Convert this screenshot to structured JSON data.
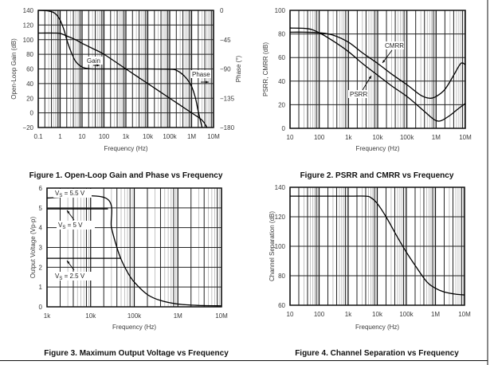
{
  "page": {
    "bottom_marks": [
      "",
      "",
      ""
    ]
  },
  "chart_data": [
    {
      "id": "fig1",
      "type": "line",
      "title": "Figure 1. Open-Loop Gain and Phase vs Frequency",
      "xlabel": "Frequency (Hz)",
      "ylabel": "Open-Loop Gain (dB)",
      "y2label": "Phase (°)",
      "xscale": "log",
      "xlim": [
        0.1,
        10000000
      ],
      "ylim": [
        -20,
        140
      ],
      "y2lim": [
        -180,
        0
      ],
      "xticks": [
        0.1,
        1,
        10,
        100,
        1000,
        10000,
        100000,
        1000000,
        10000000
      ],
      "xticklabels": [
        "0.1",
        "1",
        "10",
        "100",
        "1k",
        "10k",
        "100k",
        "1M",
        "10M"
      ],
      "yticks": [
        -20,
        0,
        20,
        40,
        60,
        80,
        100,
        120,
        140
      ],
      "yticklabels": [
        "−20",
        "0",
        "20",
        "40",
        "60",
        "80",
        "100",
        "120",
        "140"
      ],
      "y2ticks": [
        0,
        -45,
        -90,
        -135,
        -180
      ],
      "y2ticklabels": [
        "0",
        "−45",
        "−90",
        "−135",
        "−180"
      ],
      "grid": true,
      "series": [
        {
          "name": "Gain",
          "axis": "left",
          "x": [
            0.1,
            0.5,
            1,
            2,
            5,
            10,
            30,
            100,
            1000,
            10000,
            100000,
            1000000,
            3000000,
            5000000
          ],
          "y": [
            109,
            109,
            108.5,
            105,
            100,
            95,
            88,
            80,
            60,
            40,
            20,
            0,
            -10,
            -20
          ]
        },
        {
          "name": "Phase",
          "axis": "right",
          "x": [
            0.1,
            0.3,
            0.6,
            1,
            1.5,
            2,
            3,
            5,
            10,
            20,
            40,
            100,
            1000,
            10000,
            100000,
            200000,
            500000,
            1000000,
            1500000,
            2000000,
            3000000
          ],
          "y": [
            0,
            -1,
            -5,
            -15,
            -30,
            -45,
            -62,
            -78,
            -87,
            -89.5,
            -90,
            -90,
            -90,
            -90,
            -90.5,
            -92,
            -102,
            -117,
            -135,
            -155,
            -180
          ]
        }
      ],
      "annotations": [
        {
          "text": "Gain",
          "target": "Gain"
        },
        {
          "text": "Phase",
          "target": "Phase"
        }
      ]
    },
    {
      "id": "fig2",
      "type": "line",
      "title": "Figure 2. PSRR and CMRR vs Frequency",
      "xlabel": "Frequency (Hz)",
      "ylabel": "PSRR, CMRR (dB)",
      "xscale": "log",
      "xlim": [
        10,
        10000000
      ],
      "ylim": [
        0,
        100
      ],
      "xticks": [
        10,
        100,
        1000,
        10000,
        100000,
        1000000,
        10000000
      ],
      "xticklabels": [
        "10",
        "100",
        "1k",
        "10k",
        "100k",
        "1M",
        "10M"
      ],
      "yticks": [
        0,
        20,
        40,
        60,
        80,
        100
      ],
      "yticklabels": [
        "0",
        "20",
        "40",
        "60",
        "80",
        "100"
      ],
      "grid": true,
      "series": [
        {
          "name": "CMRR",
          "x": [
            10,
            30,
            100,
            300,
            1000,
            3000,
            10000,
            30000,
            100000,
            300000,
            600000,
            1000000,
            2000000,
            4000000,
            7000000,
            10000000
          ],
          "y": [
            81.5,
            81.5,
            81,
            79,
            73,
            64,
            55,
            46,
            37,
            28,
            25.5,
            27,
            33,
            45,
            55,
            54
          ]
        },
        {
          "name": "PSRR",
          "x": [
            10,
            40,
            100,
            300,
            1000,
            3000,
            10000,
            30000,
            100000,
            300000,
            700000,
            1000000,
            1500000,
            3000000,
            6000000,
            10000000
          ],
          "y": [
            85,
            84.5,
            81,
            74,
            65,
            55,
            45,
            36,
            27,
            17,
            9,
            6.5,
            6.5,
            11,
            17,
            21
          ]
        }
      ],
      "annotations": [
        {
          "text": "CMRR",
          "target": "CMRR"
        },
        {
          "text": "PSRR",
          "target": "PSRR"
        }
      ]
    },
    {
      "id": "fig3",
      "type": "line",
      "title": "Figure 3. Maximum Output Voltage vs Frequency",
      "xlabel": "Frequency (Hz)",
      "ylabel": "Output Voltage (Vp-p)",
      "xscale": "log",
      "xlim": [
        1000,
        10000000
      ],
      "ylim": [
        0,
        6
      ],
      "xticks": [
        1000,
        10000,
        100000,
        1000000,
        10000000
      ],
      "xticklabels": [
        "1k",
        "10k",
        "100k",
        "1M",
        "10M"
      ],
      "yticks": [
        0,
        1,
        2,
        3,
        4,
        5,
        6
      ],
      "yticklabels": [
        "0",
        "1",
        "2",
        "3",
        "4",
        "5",
        "6"
      ],
      "grid": true,
      "series": [
        {
          "name": "VS = 5.5 V",
          "x": [
            1000,
            22000,
            30000,
            40000,
            50000,
            70000,
            100000,
            200000,
            400000,
            1000000,
            3000000,
            10000000
          ],
          "y": [
            5.5,
            5.5,
            4.0,
            3.0,
            2.4,
            1.75,
            1.25,
            0.62,
            0.32,
            0.14,
            0.07,
            0.05
          ]
        },
        {
          "name": "VS = 5 V",
          "x": [
            1000,
            25000
          ],
          "y": [
            4.95,
            4.95
          ]
        },
        {
          "name": "VS = 2.5 V",
          "x": [
            1000,
            50000
          ],
          "y": [
            2.45,
            2.45
          ]
        }
      ],
      "annotations": [
        {
          "text": "VS = 5.5 V",
          "main": "V",
          "sub": "S",
          "rest": " = 5.5 V"
        },
        {
          "text": "VS = 5 V",
          "main": "V",
          "sub": "S",
          "rest": " = 5 V"
        },
        {
          "text": "VS = 2.5 V",
          "main": "V",
          "sub": "S",
          "rest": " = 2.5 V"
        }
      ]
    },
    {
      "id": "fig4",
      "type": "line",
      "title": "Figure 4. Channel Separation vs Frequency",
      "xlabel": "Frequency (Hz)",
      "ylabel": "Channel Separation (dB)",
      "xscale": "log",
      "xlim": [
        10,
        10000000
      ],
      "ylim": [
        60,
        140
      ],
      "xticks": [
        10,
        100,
        1000,
        10000,
        100000,
        1000000,
        10000000
      ],
      "xticklabels": [
        "10",
        "100",
        "1k",
        "10k",
        "100k",
        "1M",
        "10M"
      ],
      "yticks": [
        60,
        80,
        100,
        120,
        140
      ],
      "yticklabels": [
        "60",
        "80",
        "100",
        "120",
        "140"
      ],
      "grid": true,
      "series": [
        {
          "name": "Channel Separation",
          "x": [
            10,
            1000,
            4000,
            6000,
            10000,
            20000,
            50000,
            100000,
            200000,
            500000,
            1000000,
            2000000,
            5000000,
            10000000
          ],
          "y": [
            134,
            134,
            134,
            133,
            129,
            120,
            106,
            96,
            87,
            76,
            71.5,
            69,
            67.5,
            67
          ]
        }
      ]
    }
  ]
}
